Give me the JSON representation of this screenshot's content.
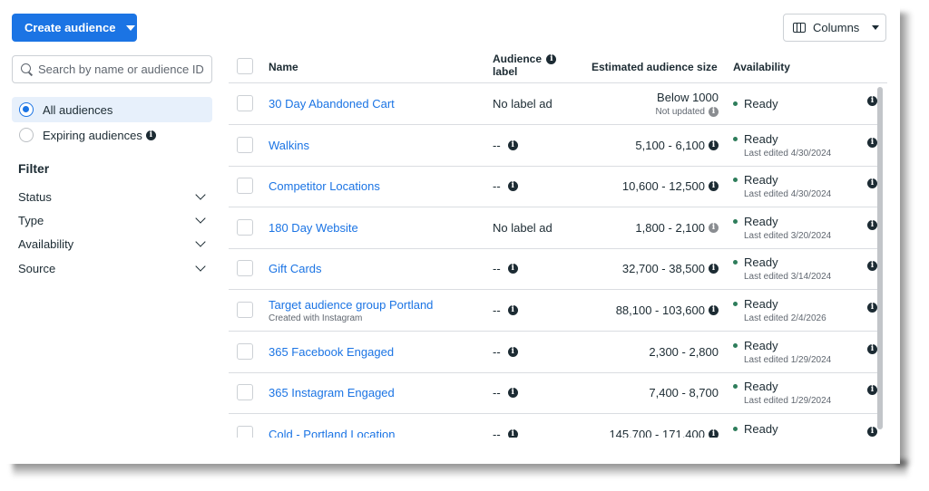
{
  "toolbar": {
    "create_label": "Create audience",
    "columns_label": "Columns"
  },
  "sidebar": {
    "search_placeholder": "Search by name or audience ID",
    "views": [
      {
        "label": "All audiences",
        "selected": true
      },
      {
        "label": "Expiring audiences",
        "selected": false
      }
    ],
    "filter_title": "Filter",
    "filters": [
      "Status",
      "Type",
      "Availability",
      "Source"
    ]
  },
  "table": {
    "headers": {
      "name": "Name",
      "label_line1": "Audience",
      "label_line2": "label",
      "size": "Estimated audience size",
      "availability": "Availability"
    },
    "rows": [
      {
        "name": "30 Day Abandoned Cart",
        "sub": "",
        "label": "No label added",
        "size": "Below 1000",
        "size_note": "Not updated",
        "status": "Ready",
        "edited": ""
      },
      {
        "name": "Walkins",
        "sub": "",
        "label": "--",
        "size": "5,100 - 6,100",
        "size_note": "",
        "status": "Ready",
        "edited": "Last edited 4/30/2024"
      },
      {
        "name": "Competitor Locations",
        "sub": "",
        "label": "--",
        "size": "10,600 - 12,500",
        "size_note": "",
        "status": "Ready",
        "edited": "Last edited 4/30/2024"
      },
      {
        "name": "180 Day Website",
        "sub": "",
        "label": "No label added",
        "size": "1,800 - 2,100",
        "size_note": "",
        "status": "Ready",
        "edited": "Last edited 3/20/2024"
      },
      {
        "name": "Gift Cards",
        "sub": "",
        "label": "--",
        "size": "32,700 - 38,500",
        "size_note": "",
        "status": "Ready",
        "edited": "Last edited 3/14/2024"
      },
      {
        "name": "Target audience group Portland",
        "sub": "Created with Instagram",
        "label": "--",
        "size": "88,100 - 103,600",
        "size_note": "",
        "status": "Ready",
        "edited": "Last edited 2/4/2026"
      },
      {
        "name": "365 Facebook Engaged",
        "sub": "",
        "label": "--",
        "size": "2,300 - 2,800",
        "size_note": "",
        "status": "Ready",
        "edited": "Last edited 1/29/2024"
      },
      {
        "name": "365 Instagram Engaged",
        "sub": "",
        "label": "--",
        "size": "7,400 - 8,700",
        "size_note": "",
        "status": "Ready",
        "edited": "Last edited 1/29/2024"
      },
      {
        "name": "Cold - Portland Location",
        "sub": "",
        "label": "--",
        "size": "145,700 - 171,400",
        "size_note": "",
        "status": "Ready",
        "edited": ""
      }
    ]
  },
  "colors": {
    "accent": "#1b74e4",
    "ready_dot": "#2e7d5b",
    "selected_bg": "#e7f0fb"
  }
}
